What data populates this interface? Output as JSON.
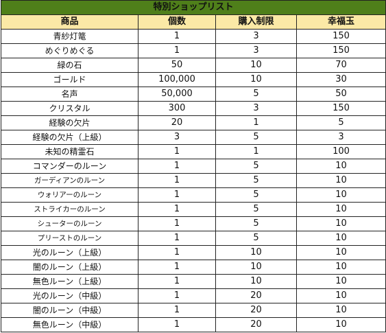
{
  "table": {
    "title": "特別ショップリスト",
    "headers": [
      "商品",
      "個数",
      "購入制限",
      "幸福玉"
    ],
    "rows": [
      {
        "item": "青紗灯篭",
        "count": "1",
        "limit": "3",
        "cost": "150"
      },
      {
        "item": "めぐりめぐる",
        "count": "1",
        "limit": "3",
        "cost": "150"
      },
      {
        "item": "緑の石",
        "count": "50",
        "limit": "10",
        "cost": "70"
      },
      {
        "item": "ゴールド",
        "count": "100,000",
        "limit": "10",
        "cost": "30"
      },
      {
        "item": "名声",
        "count": "50,000",
        "limit": "5",
        "cost": "50"
      },
      {
        "item": "クリスタル",
        "count": "300",
        "limit": "3",
        "cost": "150"
      },
      {
        "item": "経験の欠片",
        "count": "20",
        "limit": "1",
        "cost": "5"
      },
      {
        "item": "経験の欠片（上級）",
        "count": "3",
        "limit": "5",
        "cost": "3"
      },
      {
        "item": "未知の精霊石",
        "count": "1",
        "limit": "1",
        "cost": "100"
      },
      {
        "item": "コマンダーのルーン",
        "count": "1",
        "limit": "5",
        "cost": "10"
      },
      {
        "item": "ガーディアンのルーン",
        "count": "1",
        "limit": "5",
        "cost": "10"
      },
      {
        "item": "ウォリアーのルーン",
        "count": "1",
        "limit": "5",
        "cost": "10"
      },
      {
        "item": "ストライカーのルーン",
        "count": "1",
        "limit": "5",
        "cost": "10"
      },
      {
        "item": "シューターのルーン",
        "count": "1",
        "limit": "5",
        "cost": "10"
      },
      {
        "item": "プリーストのルーン",
        "count": "1",
        "limit": "5",
        "cost": "10"
      },
      {
        "item": "光のルーン（上級）",
        "count": "1",
        "limit": "10",
        "cost": "10"
      },
      {
        "item": "闇のルーン（上級）",
        "count": "1",
        "limit": "10",
        "cost": "10"
      },
      {
        "item": "無色ルーン（上級）",
        "count": "1",
        "limit": "10",
        "cost": "10"
      },
      {
        "item": "光のルーン（中級）",
        "count": "1",
        "limit": "20",
        "cost": "10"
      },
      {
        "item": "闇のルーン（中級）",
        "count": "1",
        "limit": "20",
        "cost": "10"
      },
      {
        "item": "無色ルーン（中級）",
        "count": "1",
        "limit": "20",
        "cost": "10"
      }
    ]
  },
  "colors": {
    "title_bg": "#4f7f1a",
    "title_text": "#ffffff",
    "header_bg": "#fbe9a6",
    "border": "#222222"
  }
}
